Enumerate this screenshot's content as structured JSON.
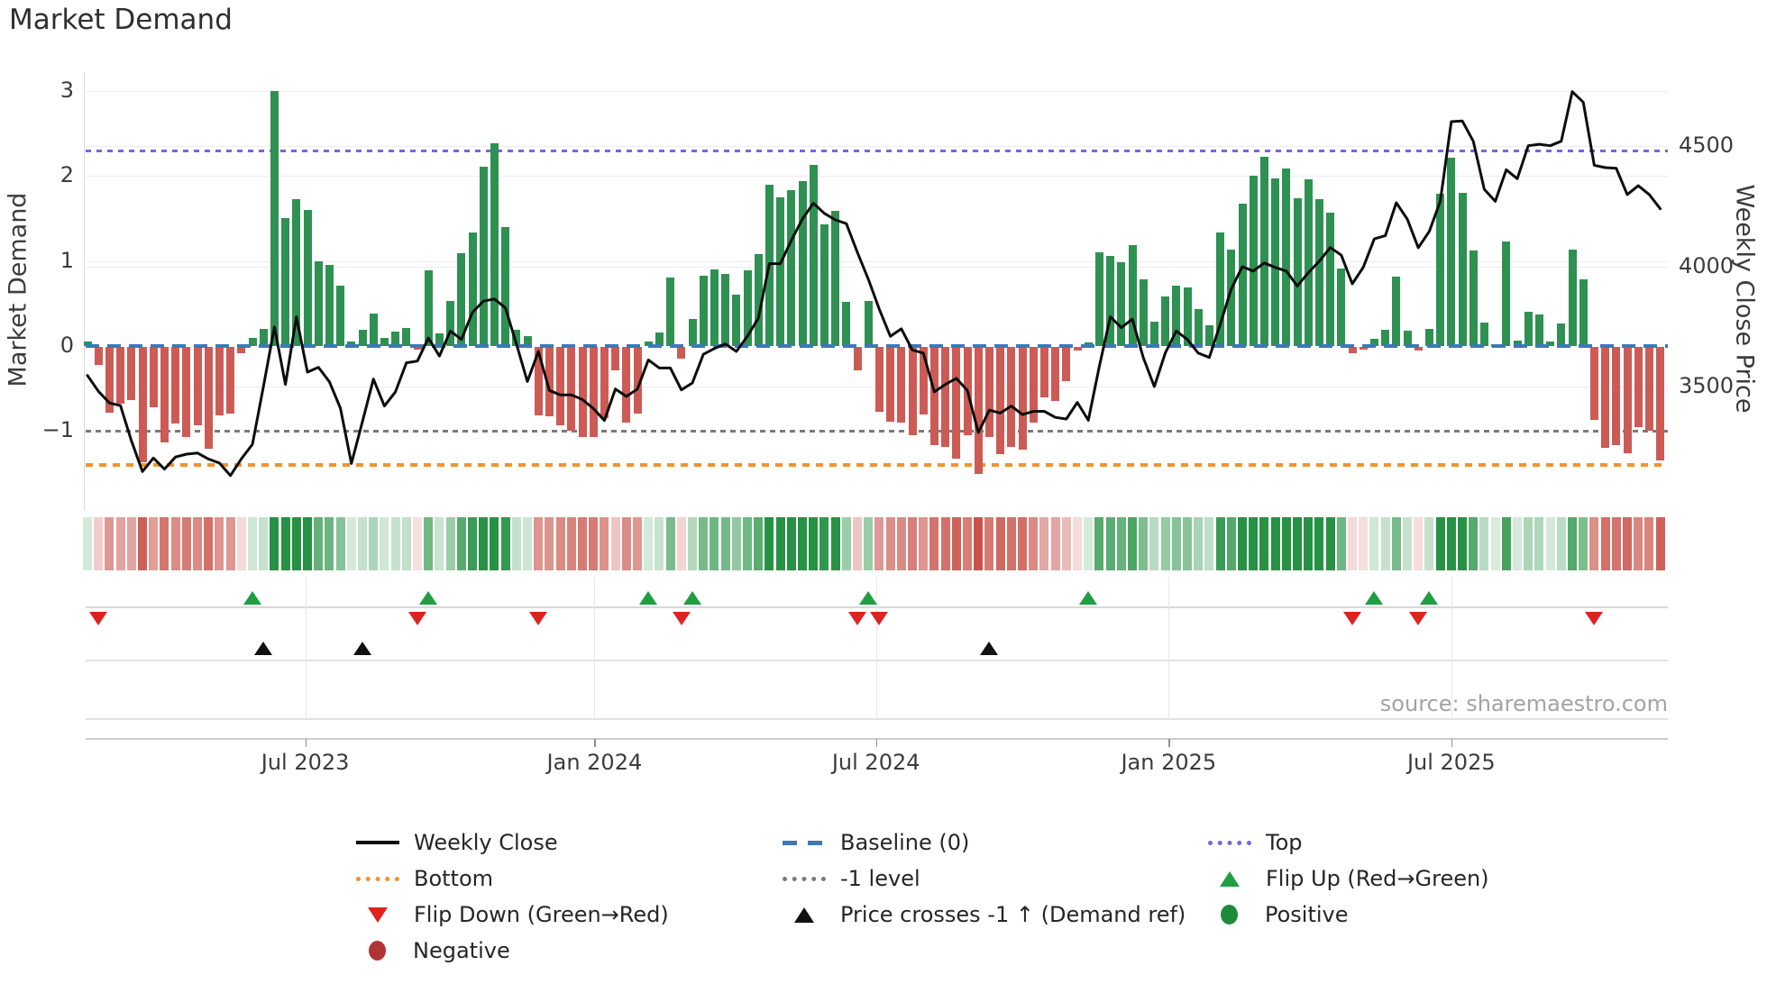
{
  "title": "Market Demand",
  "source": "source: sharemaestro.com",
  "y_axis_left": {
    "label": "Market Demand",
    "tick_labels": [
      "3",
      "2",
      "1",
      "0",
      "−1"
    ],
    "tick_values": [
      3,
      2,
      1,
      0,
      -1
    ]
  },
  "y_axis_right": {
    "label": "Weekly Close Price",
    "tick_labels": [
      "4500",
      "4000",
      "3500"
    ],
    "tick_values": [
      4500,
      4000,
      3500
    ]
  },
  "colors": {
    "positive_bar": "#2e9152",
    "negative_bar": "#cd5b55",
    "price_line": "#0d0d0d",
    "baseline": "#3b79b8",
    "top_line": "#7466da",
    "bottom_line": "#f0942e",
    "minus_one_line": "#7b7b7b",
    "flip_up": "#1f9e44",
    "flip_down": "#dd2222",
    "price_cross": "#111111",
    "heat_green": "26,140,58",
    "heat_red": "198,72,62"
  },
  "legend": {
    "items": [
      {
        "label": "Weekly Close",
        "marker": "line",
        "col": 0,
        "row": 0
      },
      {
        "label": "Baseline (0)",
        "marker": "dash",
        "col": 1,
        "row": 0
      },
      {
        "label": "Top",
        "marker": "dots-purple",
        "col": 2,
        "row": 0
      },
      {
        "label": "Bottom",
        "marker": "dots-orange",
        "col": 0,
        "row": 1
      },
      {
        "label": "-1 level",
        "marker": "dots-gray",
        "col": 1,
        "row": 1
      },
      {
        "label": "Flip Up (Red→Green)",
        "marker": "tri-up",
        "col": 2,
        "row": 1
      },
      {
        "label": "Flip Down (Green→Red)",
        "marker": "tri-down",
        "col": 0,
        "row": 2
      },
      {
        "label": "Price crosses -1 ↑ (Demand ref)",
        "marker": "tri-up-black",
        "col": 1,
        "row": 2
      },
      {
        "label": "Positive",
        "marker": "circle-pos",
        "col": 2,
        "row": 2
      },
      {
        "label": "Negative",
        "marker": "circle-neg",
        "col": 0,
        "row": 3
      }
    ]
  },
  "chart_data": {
    "type": "bar+line",
    "x_unit": "week",
    "x_ticks": [
      {
        "label": "Jul 2023",
        "week": 19.8
      },
      {
        "label": "Jan 2024",
        "week": 46.1
      },
      {
        "label": "Jul 2024",
        "week": 71.7
      },
      {
        "label": "Jan 2025",
        "week": 98.3
      },
      {
        "label": "Jul 2025",
        "week": 124.0
      }
    ],
    "ylim_left": [
      -1.75,
      3.1
    ],
    "ylim_right": [
      3050,
      4800
    ],
    "reference_lines": {
      "baseline": 0,
      "top": 2.3,
      "minus_one": -1,
      "bottom": -1.4
    },
    "series": [
      {
        "name": "Market Demand",
        "type": "bar"
      },
      {
        "name": "Weekly Close",
        "type": "line",
        "axis": "right"
      }
    ],
    "demand": [
      0.05,
      -0.22,
      -0.78,
      -0.67,
      -0.63,
      -1.36,
      -0.72,
      -1.13,
      -0.91,
      -1.07,
      -0.93,
      -1.2,
      -0.81,
      -0.79,
      -0.08,
      0.1,
      0.2,
      3.0,
      1.51,
      1.73,
      1.6,
      1.0,
      0.95,
      0.71,
      0.05,
      0.19,
      0.38,
      0.1,
      0.17,
      0.21,
      -0.02,
      0.89,
      0.15,
      0.53,
      1.09,
      1.34,
      2.11,
      2.39,
      1.4,
      0.19,
      0.12,
      -0.81,
      -0.82,
      -0.93,
      -0.99,
      -1.07,
      -1.07,
      -0.84,
      -0.28,
      -0.9,
      -0.79,
      0.05,
      0.16,
      0.81,
      -0.14,
      0.32,
      0.83,
      0.9,
      0.85,
      0.6,
      0.89,
      1.08,
      1.9,
      1.75,
      1.83,
      1.94,
      2.13,
      1.43,
      1.59,
      0.52,
      -0.28,
      0.53,
      -0.77,
      -0.88,
      -0.9,
      -1.04,
      -0.8,
      -1.16,
      -1.18,
      -1.32,
      -1.04,
      -1.5,
      -1.07,
      -1.27,
      -1.18,
      -1.21,
      -0.9,
      -0.6,
      -0.64,
      -0.41,
      -0.05,
      0.04,
      1.1,
      1.06,
      0.99,
      1.19,
      0.79,
      0.29,
      0.58,
      0.71,
      0.69,
      0.43,
      0.24,
      1.34,
      1.13,
      1.68,
      2.0,
      2.23,
      1.97,
      2.09,
      1.74,
      1.96,
      1.73,
      1.57,
      0.91,
      -0.08,
      -0.03,
      0.09,
      0.19,
      0.82,
      0.18,
      -0.05,
      0.2,
      1.79,
      2.22,
      1.8,
      1.12,
      0.28,
      0.02,
      1.23,
      0.06,
      0.4,
      0.37,
      0.05,
      0.27,
      1.13,
      0.78,
      -0.86,
      -1.19,
      -1.16,
      -1.26,
      -0.95,
      -0.99,
      -1.34
    ],
    "weekly_close": [
      3546,
      3480,
      3432,
      3421,
      3274,
      3147,
      3203,
      3157,
      3207,
      3219,
      3224,
      3199,
      3182,
      3130,
      3200,
      3260,
      3500,
      3748,
      3509,
      3790,
      3560,
      3580,
      3520,
      3410,
      3180,
      3354,
      3531,
      3419,
      3478,
      3599,
      3606,
      3702,
      3627,
      3731,
      3696,
      3808,
      3855,
      3864,
      3827,
      3677,
      3521,
      3646,
      3484,
      3465,
      3465,
      3446,
      3409,
      3359,
      3490,
      3459,
      3489,
      3611,
      3577,
      3577,
      3486,
      3515,
      3634,
      3658,
      3677,
      3646,
      3709,
      3784,
      4011,
      4011,
      4108,
      4196,
      4262,
      4220,
      4193,
      4177,
      4058,
      3946,
      3821,
      3709,
      3740,
      3652,
      3639,
      3478,
      3509,
      3534,
      3484,
      3309,
      3402,
      3390,
      3419,
      3384,
      3397,
      3397,
      3372,
      3365,
      3434,
      3360,
      3584,
      3790,
      3745,
      3780,
      3620,
      3500,
      3640,
      3731,
      3696,
      3639,
      3621,
      3760,
      3906,
      3998,
      3980,
      4014,
      3995,
      3980,
      3918,
      3973,
      4021,
      4078,
      4046,
      3927,
      3996,
      4114,
      4127,
      4264,
      4196,
      4077,
      4145,
      4270,
      4601,
      4604,
      4520,
      4320,
      4270,
      4401,
      4364,
      4501,
      4507,
      4501,
      4520,
      4726,
      4682,
      4420,
      4410,
      4407,
      4298,
      4335,
      4298,
      4239
    ],
    "markers": {
      "flip_up_weeks": [
        15,
        31,
        51,
        55,
        71,
        91,
        117,
        122
      ],
      "flip_down_weeks": [
        1,
        30,
        41,
        54,
        70,
        72,
        115,
        121,
        137
      ],
      "price_cross_weeks": [
        16,
        25,
        82
      ]
    }
  }
}
